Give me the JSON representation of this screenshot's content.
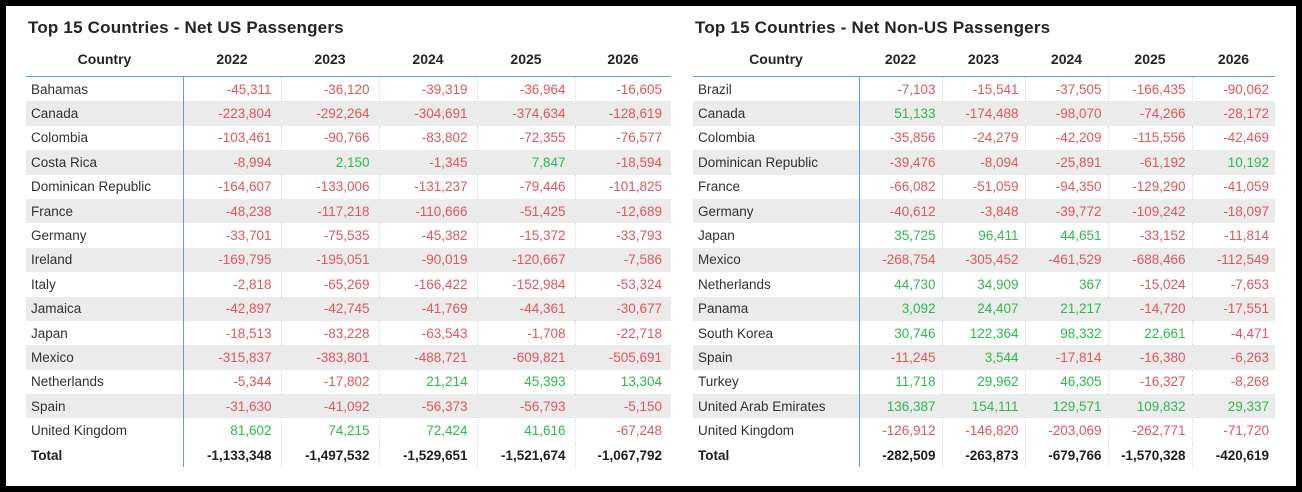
{
  "colors": {
    "negative_value": "#e0565c",
    "positive_value": "#2eb94d",
    "gridline_blue": "#57a0d9",
    "row_band": "#ebebeb",
    "header_text": "#252423",
    "frame_border": "#000000"
  },
  "chart_data": [
    {
      "type": "table",
      "title": "Top 15 Countries - Net US Passengers",
      "columns": [
        "Country",
        "2022",
        "2023",
        "2024",
        "2025",
        "2026"
      ],
      "rows": [
        [
          "Bahamas",
          "-45,311",
          "-36,120",
          "-39,319",
          "-36,964",
          "-16,605"
        ],
        [
          "Canada",
          "-223,804",
          "-292,264",
          "-304,691",
          "-374,634",
          "-128,619"
        ],
        [
          "Colombia",
          "-103,461",
          "-90,766",
          "-83,802",
          "-72,355",
          "-76,577"
        ],
        [
          "Costa Rica",
          "-8,994",
          "2,150",
          "-1,345",
          "7,847",
          "-18,594"
        ],
        [
          "Dominican Republic",
          "-164,607",
          "-133,006",
          "-131,237",
          "-79,446",
          "-101,825"
        ],
        [
          "France",
          "-48,238",
          "-117,218",
          "-110,666",
          "-51,425",
          "-12,689"
        ],
        [
          "Germany",
          "-33,701",
          "-75,535",
          "-45,382",
          "-15,372",
          "-33,793"
        ],
        [
          "Ireland",
          "-169,795",
          "-195,051",
          "-90,019",
          "-120,667",
          "-7,586"
        ],
        [
          "Italy",
          "-2,818",
          "-65,269",
          "-166,422",
          "-152,984",
          "-53,324"
        ],
        [
          "Jamaica",
          "-42,897",
          "-42,745",
          "-41,769",
          "-44,361",
          "-30,677"
        ],
        [
          "Japan",
          "-18,513",
          "-83,228",
          "-63,543",
          "-1,708",
          "-22,718"
        ],
        [
          "Mexico",
          "-315,837",
          "-383,801",
          "-488,721",
          "-609,821",
          "-505,691"
        ],
        [
          "Netherlands",
          "-5,344",
          "-17,802",
          "21,214",
          "45,393",
          "13,304"
        ],
        [
          "Spain",
          "-31,630",
          "-41,092",
          "-56,373",
          "-56,793",
          "-5,150"
        ],
        [
          "United Kingdom",
          "81,602",
          "74,215",
          "72,424",
          "41,616",
          "-67,248"
        ]
      ],
      "total_row": [
        "Total",
        "-1,133,348",
        "-1,497,532",
        "-1,529,651",
        "-1,521,674",
        "-1,067,792"
      ]
    },
    {
      "type": "table",
      "title": "Top 15 Countries - Net Non-US Passengers",
      "columns": [
        "Country",
        "2022",
        "2023",
        "2024",
        "2025",
        "2026"
      ],
      "rows": [
        [
          "Brazil",
          "-7,103",
          "-15,541",
          "-37,505",
          "-166,435",
          "-90,062"
        ],
        [
          "Canada",
          "51,133",
          "-174,488",
          "-98,070",
          "-74,266",
          "-28,172"
        ],
        [
          "Colombia",
          "-35,856",
          "-24,279",
          "-42,209",
          "-115,556",
          "-42,469"
        ],
        [
          "Dominican Republic",
          "-39,476",
          "-8,094",
          "-25,891",
          "-61,192",
          "10,192"
        ],
        [
          "France",
          "-66,082",
          "-51,059",
          "-94,350",
          "-129,290",
          "-41,059"
        ],
        [
          "Germany",
          "-40,612",
          "-3,848",
          "-39,772",
          "-109,242",
          "-18,097"
        ],
        [
          "Japan",
          "35,725",
          "96,411",
          "44,651",
          "-33,152",
          "-11,814"
        ],
        [
          "Mexico",
          "-268,754",
          "-305,452",
          "-461,529",
          "-688,466",
          "-112,549"
        ],
        [
          "Netherlands",
          "44,730",
          "34,909",
          "367",
          "-15,024",
          "-7,653"
        ],
        [
          "Panama",
          "3,092",
          "24,407",
          "21,217",
          "-14,720",
          "-17,551"
        ],
        [
          "South Korea",
          "30,746",
          "122,364",
          "98,332",
          "22,661",
          "-4,471"
        ],
        [
          "Spain",
          "-11,245",
          "3,544",
          "-17,814",
          "-16,380",
          "-6,263"
        ],
        [
          "Turkey",
          "11,718",
          "29,962",
          "46,305",
          "-16,327",
          "-8,268"
        ],
        [
          "United Arab Emirates",
          "136,387",
          "154,111",
          "129,571",
          "109,832",
          "29,337"
        ],
        [
          "United Kingdom",
          "-126,912",
          "-146,820",
          "-203,069",
          "-262,771",
          "-71,720"
        ]
      ],
      "total_row": [
        "Total",
        "-282,509",
        "-263,873",
        "-679,766",
        "-1,570,328",
        "-420,619"
      ]
    }
  ]
}
